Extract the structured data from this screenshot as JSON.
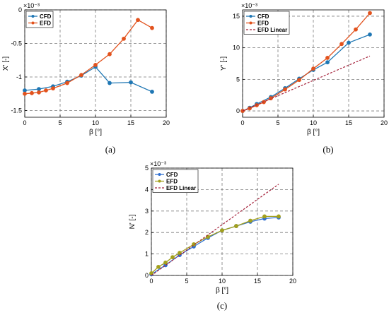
{
  "chart_data": [
    {
      "type": "line",
      "caption": "(a)",
      "xlabel": "β [°]",
      "ylabel": "X' [-]",
      "exponent_label": "×10⁻³",
      "xlim": [
        0,
        20
      ],
      "ylim": [
        -1.6,
        0
      ],
      "xticks": [
        "0",
        "5",
        "10",
        "15",
        "20"
      ],
      "yticks": [
        "-1.5",
        "-1",
        "-0.5",
        "0"
      ],
      "grid": true,
      "legend_position": "top-left",
      "series": [
        {
          "name": "CFD",
          "color": "#1f77b4",
          "style": "solid",
          "x": [
            0,
            2,
            4,
            6,
            8,
            10,
            12,
            15,
            18
          ],
          "y": [
            -1.2,
            -1.18,
            -1.14,
            -1.07,
            -0.98,
            -0.85,
            -1.09,
            -1.08,
            -1.22
          ]
        },
        {
          "name": "EFD",
          "color": "#e2521d",
          "style": "solid",
          "x": [
            0,
            1,
            2,
            3,
            4,
            6,
            8,
            10,
            12,
            14,
            16,
            18
          ],
          "y": [
            -1.25,
            -1.24,
            -1.23,
            -1.2,
            -1.17,
            -1.09,
            -0.97,
            -0.82,
            -0.66,
            -0.43,
            -0.15,
            -0.27
          ]
        }
      ]
    },
    {
      "type": "line",
      "caption": "(b)",
      "xlabel": "β [°]",
      "ylabel": "Y' [-]",
      "exponent_label": "×10⁻³",
      "xlim": [
        0,
        20
      ],
      "ylim": [
        -1,
        16
      ],
      "xticks": [
        "0",
        "5",
        "10",
        "15",
        "20"
      ],
      "yticks": [
        "0",
        "5",
        "10",
        "15"
      ],
      "grid": true,
      "legend_position": "top-left",
      "series": [
        {
          "name": "CFD",
          "color": "#1f77b4",
          "style": "solid",
          "x": [
            0,
            1,
            2,
            4,
            6,
            8,
            10,
            12,
            15,
            18
          ],
          "y": [
            0,
            0.5,
            1.1,
            2.2,
            3.6,
            5.1,
            6.5,
            7.7,
            10.8,
            12.1
          ]
        },
        {
          "name": "EFD",
          "color": "#e2521d",
          "style": "solid",
          "x": [
            0,
            1,
            2,
            3,
            4,
            6,
            8,
            10,
            12,
            14,
            16,
            18
          ],
          "y": [
            0,
            0.4,
            0.9,
            1.4,
            2.0,
            3.4,
            4.9,
            6.7,
            8.4,
            10.6,
            12.9,
            15.5
          ]
        },
        {
          "name": "EFD Linear",
          "color": "#a4213a",
          "style": "dashed",
          "x": [
            0,
            18
          ],
          "y": [
            0,
            8.7
          ]
        }
      ]
    },
    {
      "type": "line",
      "caption": "(c)",
      "xlabel": "β [°]",
      "ylabel": "N' [-]",
      "exponent_label": "×10⁻³",
      "xlim": [
        0,
        20
      ],
      "ylim": [
        0,
        5
      ],
      "xticks": [
        "0",
        "5",
        "10",
        "15",
        "20"
      ],
      "yticks": [
        "0",
        "1",
        "2",
        "3",
        "4",
        "5"
      ],
      "grid": true,
      "legend_position": "top-left",
      "series": [
        {
          "name": "CFD",
          "color": "#2f6fd1",
          "style": "solid",
          "x": [
            0,
            2,
            4,
            6,
            8,
            10,
            12,
            14,
            16,
            18
          ],
          "y": [
            0.05,
            0.48,
            0.95,
            1.35,
            1.75,
            2.1,
            2.3,
            2.5,
            2.65,
            2.7
          ]
        },
        {
          "name": "EFD",
          "color": "#a3a01c",
          "style": "solid",
          "x": [
            0,
            1,
            2,
            3,
            4,
            6,
            8,
            10,
            12,
            14,
            16,
            18
          ],
          "y": [
            0.1,
            0.4,
            0.6,
            0.85,
            1.05,
            1.45,
            1.8,
            2.1,
            2.3,
            2.55,
            2.75,
            2.75
          ]
        },
        {
          "name": "EFD Linear",
          "color": "#a4213a",
          "style": "dashed",
          "x": [
            0,
            18
          ],
          "y": [
            0,
            4.25
          ]
        }
      ]
    }
  ]
}
